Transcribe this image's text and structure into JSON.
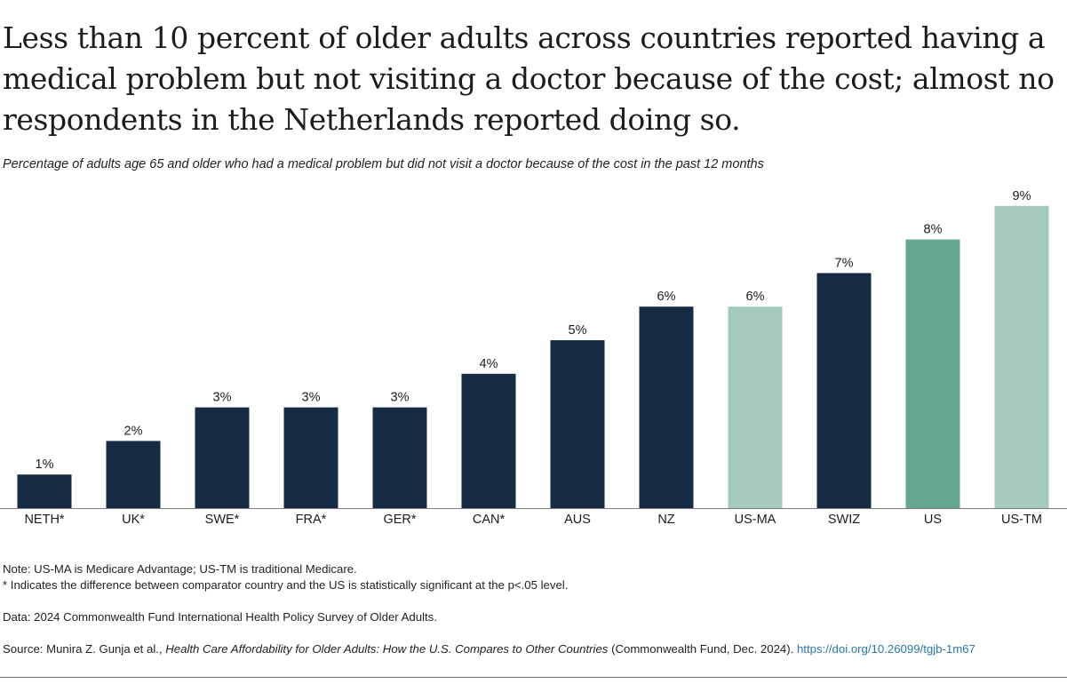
{
  "title": "Less than 10 percent of older adults across countries reported having a medical problem but not visiting a doctor because of the cost; almost no respondents in the Netherlands reported doing so.",
  "subtitle": "Percentage of adults age 65 and older who had a medical problem but did not visit a doctor because of the cost in the past 12 months",
  "colors": {
    "country": "#182b44",
    "us_ma": "#a4c9bd",
    "us": "#64a792",
    "us_tm": "#a4c9bd",
    "baseline": "#7a7a7a"
  },
  "chart_data": {
    "type": "bar",
    "title": "Percentage of adults age 65 and older who had a medical problem but did not visit a doctor because of the cost in the past 12 months",
    "categories": [
      "NETH*",
      "UK*",
      "SWE*",
      "FRA*",
      "GER*",
      "CAN*",
      "AUS",
      "NZ",
      "US-MA",
      "SWIZ",
      "US",
      "US-TM"
    ],
    "values": [
      1,
      2,
      3,
      3,
      3,
      4,
      5,
      6,
      6,
      7,
      8,
      9
    ],
    "labels": [
      "1%",
      "2%",
      "3%",
      "3%",
      "3%",
      "4%",
      "5%",
      "6%",
      "6%",
      "7%",
      "8%",
      "9%"
    ],
    "bar_colors": [
      "#182b44",
      "#182b44",
      "#182b44",
      "#182b44",
      "#182b44",
      "#182b44",
      "#182b44",
      "#182b44",
      "#a4c9bd",
      "#182b44",
      "#64a792",
      "#a4c9bd"
    ],
    "ylim": [
      0,
      9
    ],
    "xlabel": "",
    "ylabel": "",
    "grid": false
  },
  "notes": {
    "note": "Note: US-MA is Medicare Advantage; US-TM is traditional Medicare.",
    "significance": "* Indicates the difference between comparator country and the US is statistically significant at the p<.05 level.",
    "data": "Data: 2024 Commonwealth Fund International Health Policy Survey of Older Adults.",
    "source_prefix": "Source: Munira Z. Gunja et al., ",
    "source_title": "Health Care Affordability for Older Adults: How the U.S. Compares to Other Countries",
    "source_suffix": " (Commonwealth Fund, Dec. 2024). ",
    "source_link": "https://doi.org/10.26099/tgjb-1m67"
  }
}
